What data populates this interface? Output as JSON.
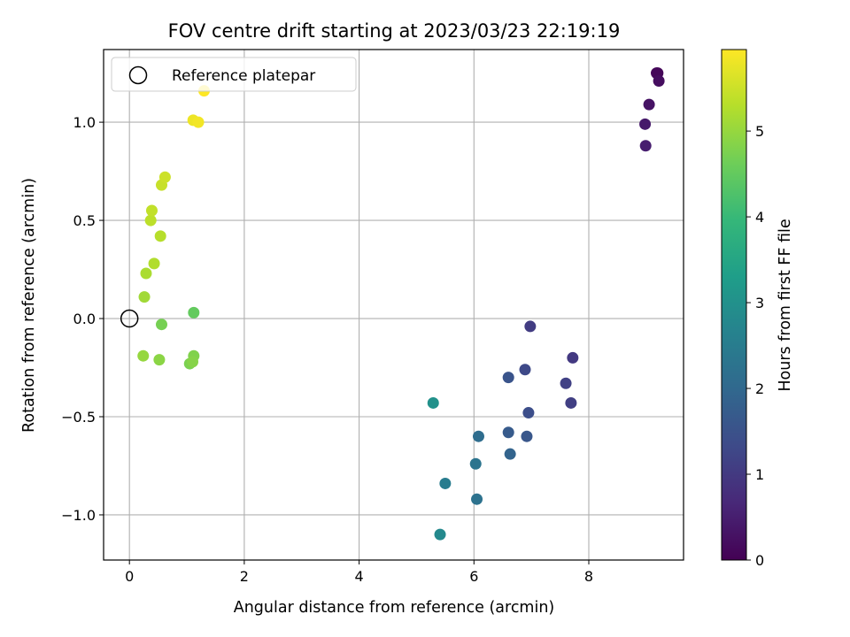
{
  "chart_data": {
    "type": "scatter",
    "title": "FOV centre drift starting at 2023/03/23 22:19:19",
    "xlabel": "Angular distance from reference (arcmin)",
    "ylabel": "Rotation from reference (arcmin)",
    "xlim": [
      -0.45,
      9.65
    ],
    "ylim": [
      -1.23,
      1.37
    ],
    "xticks": [
      0,
      2,
      4,
      6,
      8
    ],
    "xtick_labels": [
      "0",
      "2",
      "4",
      "6",
      "8"
    ],
    "yticks": [
      -1.0,
      -0.5,
      0.0,
      0.5,
      1.0
    ],
    "ytick_labels": [
      "−1.0",
      "−0.5",
      "0.0",
      "0.5",
      "1.0"
    ],
    "grid": true,
    "colormap": "viridis",
    "colorbar": {
      "label": "Hours from first FF file",
      "range": [
        0,
        5.95
      ],
      "ticks": [
        0,
        1,
        2,
        3,
        4,
        5
      ],
      "tick_labels": [
        "0",
        "1",
        "2",
        "3",
        "4",
        "5"
      ]
    },
    "legend": {
      "placement": "top-left",
      "entries": [
        "Reference platepar"
      ]
    },
    "reference_point": {
      "x": 0,
      "y": 0,
      "name": "Reference platepar"
    },
    "points": [
      {
        "x": 9.2,
        "y": 1.25,
        "c": 0.05
      },
      {
        "x": 9.18,
        "y": 1.25,
        "c": 0.1
      },
      {
        "x": 9.22,
        "y": 1.21,
        "c": 0.2
      },
      {
        "x": 9.05,
        "y": 1.09,
        "c": 0.3
      },
      {
        "x": 8.98,
        "y": 0.99,
        "c": 0.4
      },
      {
        "x": 8.99,
        "y": 0.88,
        "c": 0.5
      },
      {
        "x": 6.98,
        "y": -0.04,
        "c": 1.05
      },
      {
        "x": 7.72,
        "y": -0.2,
        "c": 1.0
      },
      {
        "x": 7.6,
        "y": -0.33,
        "c": 1.15
      },
      {
        "x": 7.69,
        "y": -0.43,
        "c": 1.1
      },
      {
        "x": 6.89,
        "y": -0.26,
        "c": 1.3
      },
      {
        "x": 6.95,
        "y": -0.48,
        "c": 1.4
      },
      {
        "x": 6.6,
        "y": -0.3,
        "c": 1.55
      },
      {
        "x": 6.6,
        "y": -0.58,
        "c": 1.7
      },
      {
        "x": 6.92,
        "y": -0.6,
        "c": 1.6
      },
      {
        "x": 6.63,
        "y": -0.69,
        "c": 1.9
      },
      {
        "x": 6.08,
        "y": -0.6,
        "c": 2.1
      },
      {
        "x": 6.03,
        "y": -0.74,
        "c": 2.3
      },
      {
        "x": 6.05,
        "y": -0.92,
        "c": 2.25
      },
      {
        "x": 5.5,
        "y": -0.84,
        "c": 2.5
      },
      {
        "x": 5.41,
        "y": -1.1,
        "c": 2.8
      },
      {
        "x": 5.29,
        "y": -0.43,
        "c": 3.0
      },
      {
        "x": 1.12,
        "y": 0.03,
        "c": 4.5
      },
      {
        "x": 0.56,
        "y": -0.03,
        "c": 4.7
      },
      {
        "x": 1.12,
        "y": -0.19,
        "c": 4.8
      },
      {
        "x": 1.05,
        "y": -0.23,
        "c": 4.75
      },
      {
        "x": 1.1,
        "y": -0.22,
        "c": 4.85
      },
      {
        "x": 0.52,
        "y": -0.21,
        "c": 4.9
      },
      {
        "x": 0.24,
        "y": -0.19,
        "c": 5.0
      },
      {
        "x": 0.26,
        "y": 0.11,
        "c": 5.1
      },
      {
        "x": 0.29,
        "y": 0.23,
        "c": 5.2
      },
      {
        "x": 0.43,
        "y": 0.28,
        "c": 5.25
      },
      {
        "x": 0.54,
        "y": 0.42,
        "c": 5.3
      },
      {
        "x": 0.37,
        "y": 0.5,
        "c": 5.35
      },
      {
        "x": 0.39,
        "y": 0.55,
        "c": 5.4
      },
      {
        "x": 0.56,
        "y": 0.68,
        "c": 5.45
      },
      {
        "x": 0.62,
        "y": 0.72,
        "c": 5.5
      },
      {
        "x": 1.11,
        "y": 1.01,
        "c": 5.8
      },
      {
        "x": 1.2,
        "y": 1.0,
        "c": 5.85
      },
      {
        "x": 1.3,
        "y": 1.16,
        "c": 5.95
      }
    ]
  }
}
